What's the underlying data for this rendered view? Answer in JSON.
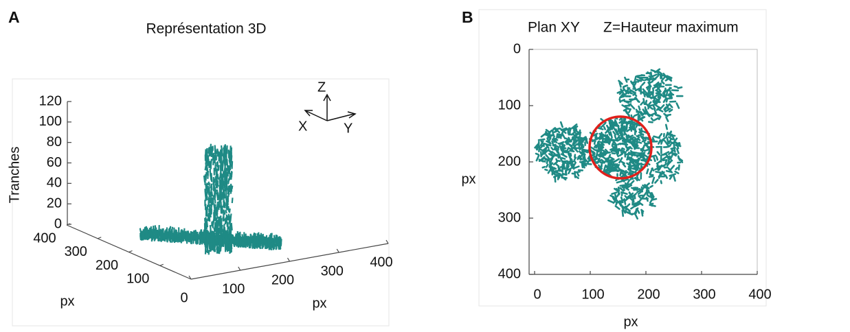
{
  "chart_data": [
    {
      "type": "3d",
      "panel_label": "A",
      "title": "Représentation 3D",
      "zlabel": "Tranches",
      "xlabel": "px",
      "ylabel": "px",
      "zlim": [
        0,
        120
      ],
      "zticks": [
        0,
        20,
        40,
        60,
        80,
        100,
        120
      ],
      "xlim": [
        0,
        400
      ],
      "xticks": [
        100,
        200,
        300,
        400
      ],
      "ylim": [
        0,
        400
      ],
      "yticks": [
        0,
        100,
        200,
        300,
        400
      ],
      "triad_labels": {
        "z": "Z",
        "x": "X",
        "y": "Y"
      },
      "color": "#1f8a85"
    },
    {
      "type": "image",
      "panel_label": "B",
      "title": "Plan XY",
      "subtitle": "Z=Hauteur maximum",
      "xlabel": "px",
      "ylabel": "px",
      "xlim": [
        0,
        400
      ],
      "xticks": [
        0,
        100,
        200,
        300,
        400
      ],
      "ylim": [
        400,
        0
      ],
      "yticks": [
        0,
        100,
        200,
        300,
        400
      ],
      "color": "#1f8a85",
      "annotation_color": "#e0201b"
    }
  ]
}
